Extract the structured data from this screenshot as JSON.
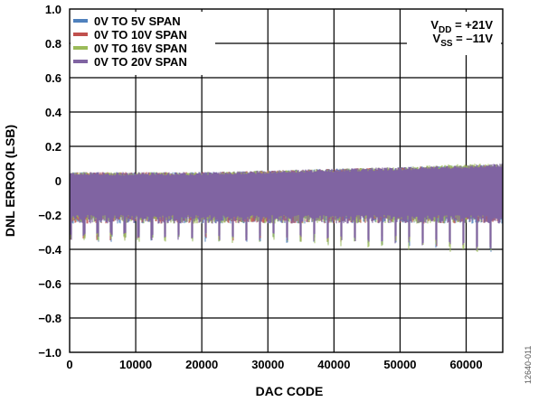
{
  "chart_data": {
    "type": "line",
    "title": "",
    "xlabel": "DAC CODE",
    "ylabel": "DNL ERROR (LSB)",
    "xlim": [
      0,
      65535
    ],
    "ylim": [
      -1.0,
      1.0
    ],
    "x_ticks": [
      "0",
      "10000",
      "20000",
      "30000",
      "40000",
      "50000",
      "60000"
    ],
    "y_ticks": [
      "1.0",
      "0.8",
      "0.6",
      "0.4",
      "0.2",
      "0",
      "−0.2",
      "−0.4",
      "−0.6",
      "−0.8",
      "−1.0"
    ],
    "grid": true,
    "legend_position": "top-left",
    "series": [
      {
        "name": "0V TO 5V SPAN",
        "color": "#4f81bd",
        "x": [
          0,
          10000,
          20000,
          30000,
          40000,
          50000,
          60000,
          65535
        ],
        "y_max": [
          0.05,
          0.05,
          0.05,
          0.06,
          0.07,
          0.08,
          0.09,
          0.09
        ],
        "y_min": [
          -0.36,
          -0.36,
          -0.36,
          -0.36,
          -0.37,
          -0.38,
          -0.4,
          -0.43
        ]
      },
      {
        "name": "0V TO 10V SPAN",
        "color": "#c0504d",
        "x": [
          0,
          10000,
          20000,
          30000,
          40000,
          50000,
          60000,
          65535
        ],
        "y_max": [
          0.05,
          0.05,
          0.05,
          0.06,
          0.07,
          0.08,
          0.09,
          0.09
        ],
        "y_min": [
          -0.35,
          -0.35,
          -0.35,
          -0.35,
          -0.36,
          -0.37,
          -0.39,
          -0.42
        ]
      },
      {
        "name": "0V TO 16V SPAN",
        "color": "#9bbb59",
        "x": [
          0,
          10000,
          20000,
          30000,
          40000,
          50000,
          60000,
          65535
        ],
        "y_max": [
          0.05,
          0.05,
          0.05,
          0.06,
          0.07,
          0.08,
          0.1,
          0.1
        ],
        "y_min": [
          -0.35,
          -0.36,
          -0.36,
          -0.37,
          -0.38,
          -0.4,
          -0.42,
          -0.45
        ]
      },
      {
        "name": "0V TO 20V SPAN",
        "color": "#8064a2",
        "x": [
          0,
          10000,
          20000,
          30000,
          40000,
          50000,
          60000,
          65535
        ],
        "y_max": [
          0.05,
          0.05,
          0.05,
          0.06,
          0.07,
          0.08,
          0.09,
          0.1
        ],
        "y_min": [
          -0.35,
          -0.35,
          -0.35,
          -0.35,
          -0.36,
          -0.37,
          -0.39,
          -0.46
        ]
      }
    ],
    "annotations": [
      {
        "main": "V",
        "sub": "DD",
        "rest": " = +21V"
      },
      {
        "main": "V",
        "sub": "SS",
        "rest": " = –11V"
      }
    ],
    "figure_id": "12640-011"
  }
}
